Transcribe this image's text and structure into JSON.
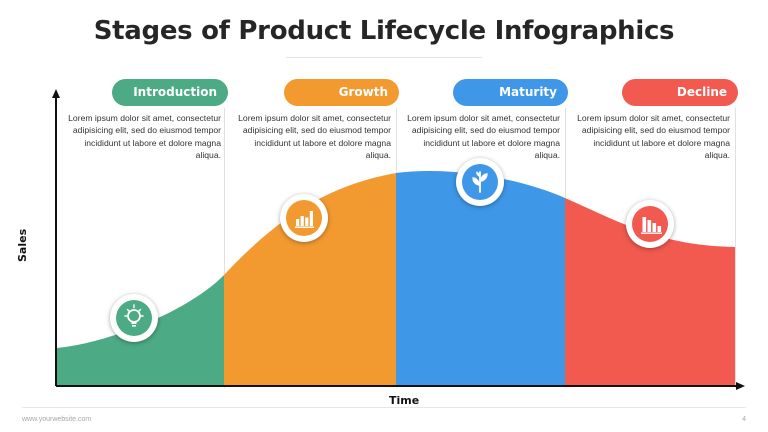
{
  "title": "Stages of Product Lifecycle Infographics",
  "axis": {
    "y_label": "Sales",
    "x_label": "Time"
  },
  "stages": [
    {
      "name": "Introduction",
      "color": "#4caa85",
      "icon": "lightbulb-icon",
      "text": "Lorem ipsum dolor sit amet, consectetur adipisicing elit, sed do eiusmod tempor incididunt ut labore et dolore magna aliqua."
    },
    {
      "name": "Growth",
      "color": "#f29a30",
      "icon": "bar-chart-icon",
      "text": "Lorem ipsum dolor sit amet, consectetur adipisicing elit, sed do eiusmod tempor incididunt ut labore et dolore magna aliqua."
    },
    {
      "name": "Maturity",
      "color": "#3f97e8",
      "icon": "plant-icon",
      "text": "Lorem ipsum dolor sit amet, consectetur adipisicing elit, sed do eiusmod tempor incididunt ut labore et dolore magna aliqua."
    },
    {
      "name": "Decline",
      "color": "#f2594f",
      "icon": "declining-bars-icon",
      "text": "Lorem ipsum dolor sit amet, consectetur adipisicing elit, sed do eiusmod tempor incididunt ut labore et dolore magna aliqua."
    }
  ],
  "footer": {
    "url": "www.yourwebsite.com",
    "page": "4"
  }
}
